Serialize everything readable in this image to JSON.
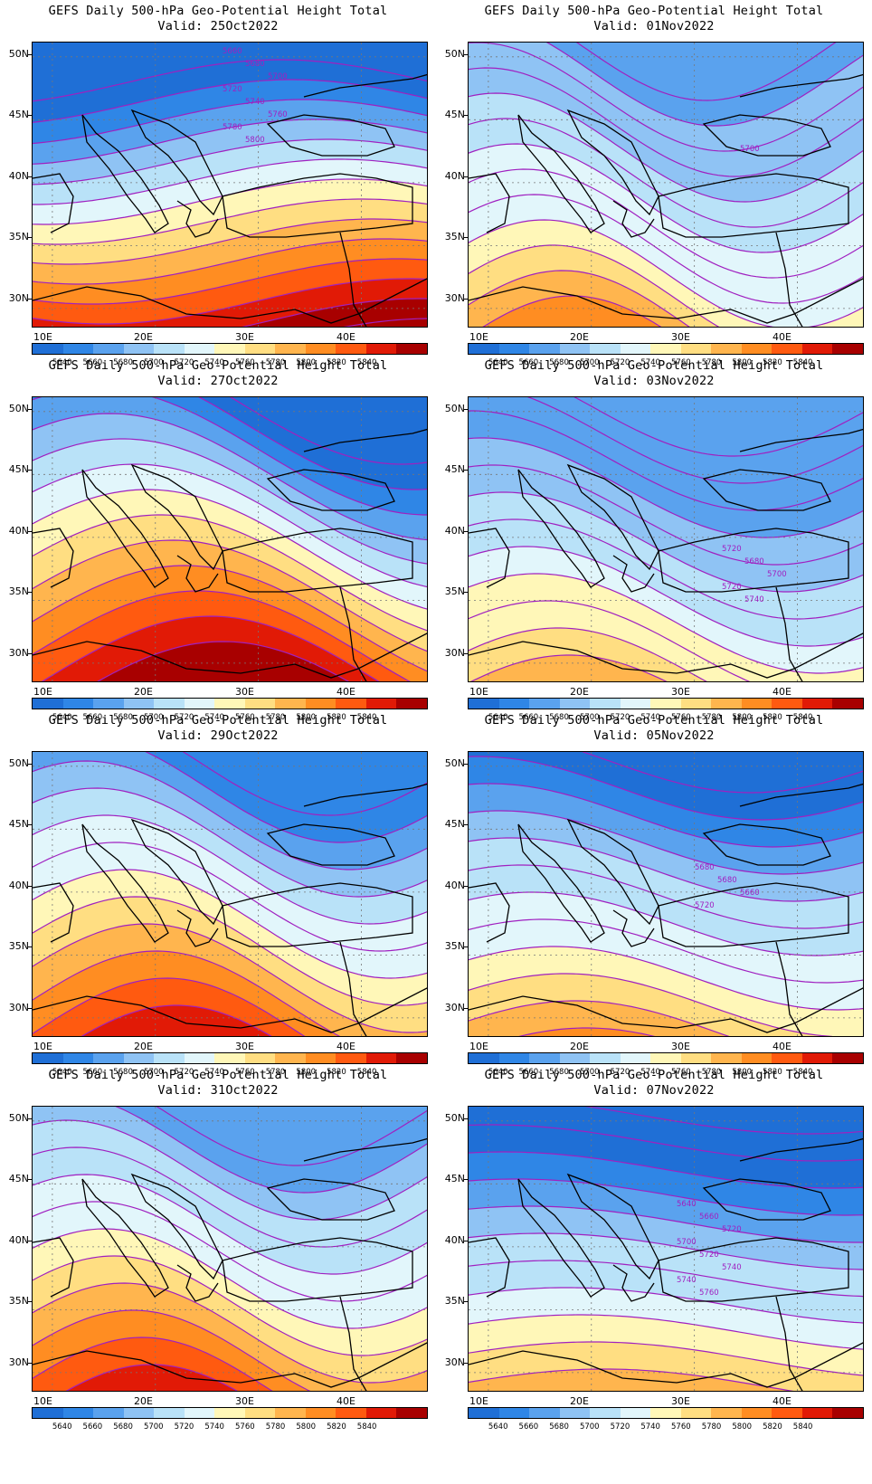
{
  "colorbar": {
    "colors": [
      "#1f6fd6",
      "#2f86e6",
      "#5aa2ee",
      "#8fc3f4",
      "#b9e2f8",
      "#e2f6fb",
      "#fff7b8",
      "#ffde82",
      "#ffb54e",
      "#ff8d22",
      "#ff5a10",
      "#e11a06",
      "#a80000"
    ],
    "labels": [
      "5640",
      "5660",
      "5680",
      "5700",
      "5720",
      "5740",
      "5760",
      "5780",
      "5800",
      "5820",
      "5840"
    ]
  },
  "axes": {
    "lat_labels": [
      "50N",
      "45N",
      "40N",
      "35N",
      "30N"
    ],
    "lon_labels": [
      "10E",
      "20E",
      "30E",
      "40E"
    ]
  },
  "panels": [
    {
      "title": "GEFS Daily 500-hPa Geo-Potential Height Total",
      "valid": "Valid: 25Oct2022",
      "contour_labels": [
        "5660",
        "5680",
        "5700",
        "5720",
        "5740",
        "5760",
        "5780",
        "5800"
      ],
      "palette": "warm-south-cold-north"
    },
    {
      "title": "GEFS Daily 500-hPa Geo-Potential Height Total",
      "valid": "Valid: 01Nov2022",
      "contour_labels": [
        "5700"
      ],
      "palette": "trough"
    },
    {
      "title": "GEFS Daily 500-hPa Geo-Potential Height Total",
      "valid": "Valid: 27Oct2022",
      "contour_labels": [],
      "palette": "ridge-west"
    },
    {
      "title": "GEFS Daily 500-hPa Geo-Potential Height Total",
      "valid": "Valid: 03Nov2022",
      "contour_labels": [
        "5720",
        "5680",
        "5700",
        "5720",
        "5740"
      ],
      "palette": "cool"
    },
    {
      "title": "GEFS Daily 500-hPa Geo-Potential Height Total",
      "valid": "Valid: 29Oct2022",
      "contour_labels": [],
      "palette": "ridge-west-trough-east"
    },
    {
      "title": "GEFS Daily 500-hPa Geo-Potential Height Total",
      "valid": "Valid: 05Nov2022",
      "contour_labels": [
        "5680",
        "5680",
        "5660",
        "5720"
      ],
      "palette": "cold"
    },
    {
      "title": "GEFS Daily 500-hPa Geo-Potential Height Total",
      "valid": "Valid: 31Oct2022",
      "contour_labels": [],
      "palette": "trough-central"
    },
    {
      "title": "GEFS Daily 500-hPa Geo-Potential Height Total",
      "valid": "Valid: 07Nov2022",
      "contour_labels": [
        "5640",
        "5660",
        "5720",
        "5700",
        "5720",
        "5740",
        "5740",
        "5760"
      ],
      "palette": "cold-north"
    }
  ]
}
